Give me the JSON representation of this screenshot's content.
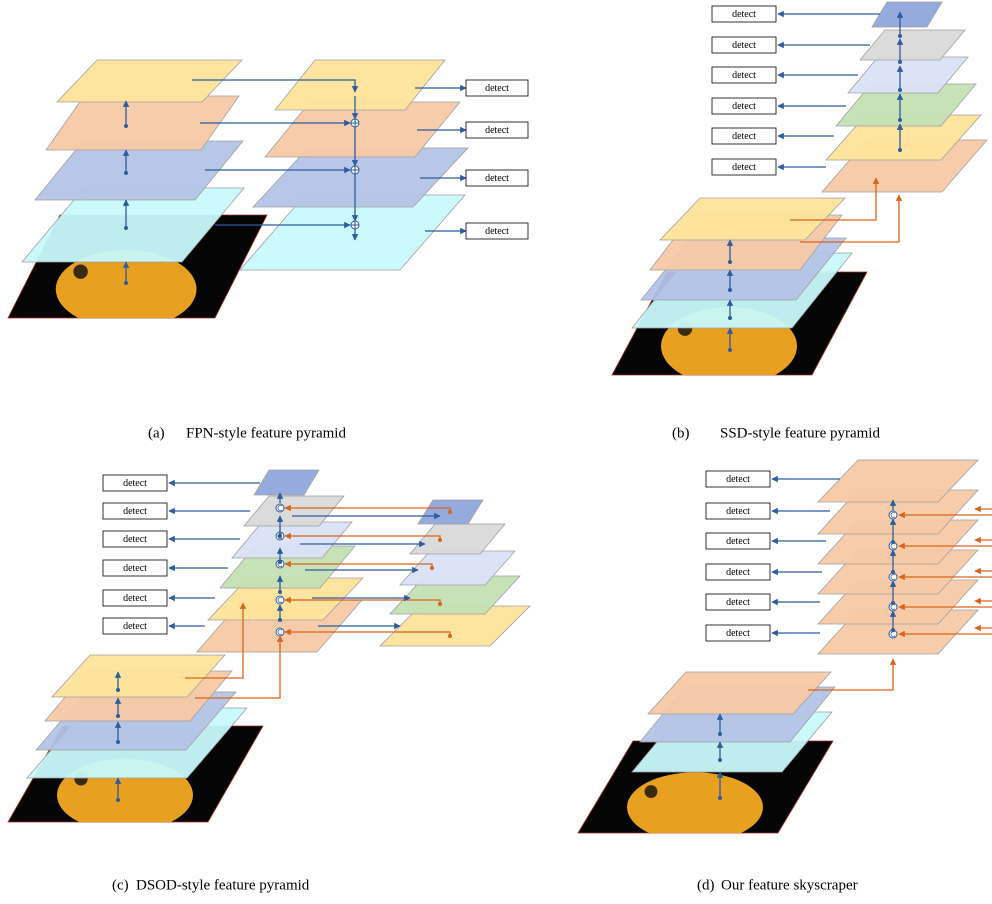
{
  "panels": [
    {
      "label": "(a)",
      "caption": "FPN-style feature pyramid",
      "detect": [
        "detect",
        "detect",
        "detect",
        "detect"
      ]
    },
    {
      "label": "(b)",
      "caption": "SSD-style feature pyramid",
      "detect": [
        "detect",
        "detect",
        "detect",
        "detect",
        "detect",
        "detect"
      ]
    },
    {
      "label": "(c)",
      "caption": "DSOD-style feature pyramid",
      "detect": [
        "detect",
        "detect",
        "detect",
        "detect",
        "detect",
        "detect"
      ]
    },
    {
      "label": "(d)",
      "caption": "Our feature skyscraper",
      "detect": [
        "detect",
        "detect",
        "detect",
        "detect",
        "detect",
        "detect"
      ]
    }
  ]
}
